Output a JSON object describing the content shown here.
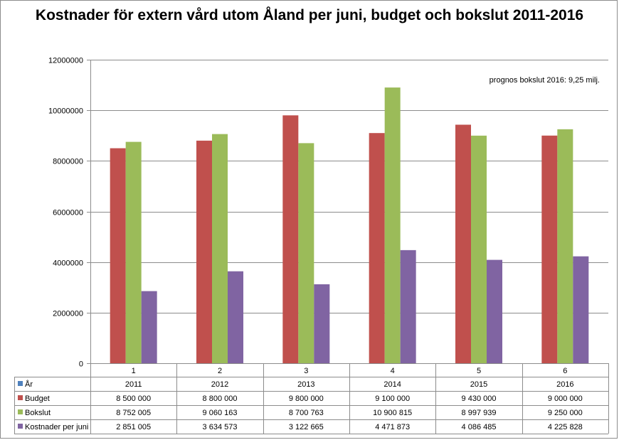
{
  "chart_data": {
    "type": "bar",
    "title": "Kostnader för extern vård utom Åland per juni, budget och bokslut 2011-2016",
    "annotation": "prognos bokslut 2016: 9,25 milj.",
    "categories": [
      "1",
      "2",
      "3",
      "4",
      "5",
      "6"
    ],
    "ylim": [
      0,
      12000000
    ],
    "yticks": [
      "0",
      "2000000",
      "4000000",
      "6000000",
      "8000000",
      "10000000",
      "12000000"
    ],
    "grid": true,
    "legend": "data-table",
    "table_rows": [
      {
        "name": "År",
        "color": "#4f81bd",
        "plotted": false,
        "cells": [
          "2011",
          "2012",
          "2013",
          "2014",
          "2015",
          "2016"
        ]
      },
      {
        "name": "Budget",
        "color": "#c0504d",
        "plotted": true,
        "values": [
          8500000,
          8800000,
          9800000,
          9100000,
          9430000,
          9000000
        ],
        "cells": [
          "8 500 000",
          "8 800 000",
          "9 800 000",
          "9 100 000",
          "9 430 000",
          "9 000 000"
        ]
      },
      {
        "name": "Bokslut",
        "color": "#9bbb59",
        "plotted": true,
        "values": [
          8752005,
          9060163,
          8700763,
          10900815,
          8997939,
          9250000
        ],
        "cells": [
          "8 752 005",
          "9 060 163",
          "8 700 763",
          "10 900 815",
          "8 997 939",
          "9 250 000"
        ]
      },
      {
        "name": "Kostnader per juni",
        "color": "#8064a2",
        "plotted": true,
        "values": [
          2851005,
          3634573,
          3122665,
          4471873,
          4086485,
          4225828
        ],
        "cells": [
          "2 851 005",
          "3 634 573",
          "3 122 665",
          "4 471 873",
          "4 086 485",
          "4 225 828"
        ]
      }
    ]
  }
}
